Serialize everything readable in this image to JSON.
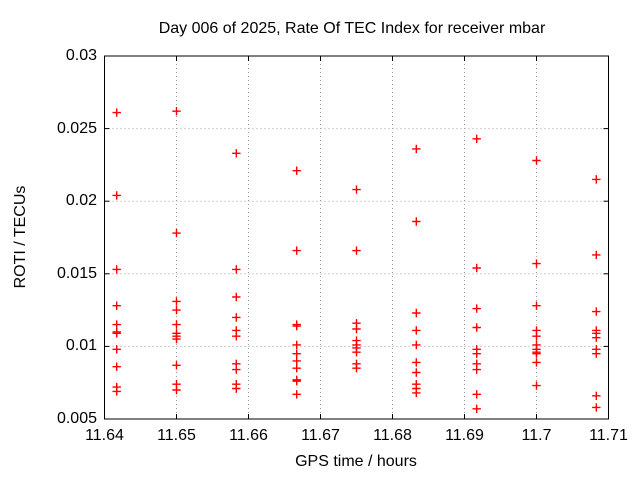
{
  "title": "Day 006 of 2025, Rate Of TEC Index for receiver mbar",
  "chart_data": {
    "type": "scatter",
    "title": "Day 006 of 2025, Rate Of TEC Index for receiver mbar",
    "xlabel": "GPS time / hours",
    "ylabel": "ROTI / TECUs",
    "xlim": [
      11.64,
      11.71
    ],
    "ylim": [
      0.005,
      0.03
    ],
    "x_ticks": [
      11.64,
      11.65,
      11.66,
      11.67,
      11.68,
      11.69,
      11.7,
      11.71
    ],
    "x_tick_labels": [
      "11.64",
      "11.65",
      "11.66",
      "11.67",
      "11.68",
      "11.69",
      "11.7",
      "11.71"
    ],
    "y_ticks": [
      0.005,
      0.01,
      0.015,
      0.02,
      0.025,
      0.03
    ],
    "y_tick_labels": [
      "0.005",
      "0.01",
      "0.015",
      "0.02",
      "0.025",
      "0.03"
    ],
    "grid": true,
    "grid_style": "dotted",
    "grid_color": "#9e9e9e",
    "border_color": "#000000",
    "legend": "none",
    "marker": "plus",
    "marker_color": "#ff0000",
    "series": [
      {
        "name": "ROTI",
        "color": "#ff0000",
        "points": [
          [
            11.6417,
            0.0261
          ],
          [
            11.6417,
            0.0204
          ],
          [
            11.6417,
            0.0153
          ],
          [
            11.6417,
            0.0128
          ],
          [
            11.6417,
            0.0115
          ],
          [
            11.6417,
            0.011
          ],
          [
            11.6417,
            0.0109
          ],
          [
            11.6417,
            0.0098
          ],
          [
            11.6417,
            0.0086
          ],
          [
            11.6417,
            0.0072
          ],
          [
            11.6417,
            0.0069
          ],
          [
            11.65,
            0.0262
          ],
          [
            11.65,
            0.0178
          ],
          [
            11.65,
            0.0131
          ],
          [
            11.65,
            0.0125
          ],
          [
            11.65,
            0.0115
          ],
          [
            11.65,
            0.0109
          ],
          [
            11.65,
            0.0107
          ],
          [
            11.65,
            0.0105
          ],
          [
            11.65,
            0.0087
          ],
          [
            11.65,
            0.0074
          ],
          [
            11.65,
            0.007
          ],
          [
            11.6583,
            0.0233
          ],
          [
            11.6583,
            0.0153
          ],
          [
            11.6583,
            0.0134
          ],
          [
            11.6583,
            0.012
          ],
          [
            11.6583,
            0.0111
          ],
          [
            11.6583,
            0.0107
          ],
          [
            11.6583,
            0.0088
          ],
          [
            11.6583,
            0.0084
          ],
          [
            11.6583,
            0.0074
          ],
          [
            11.6583,
            0.0071
          ],
          [
            11.6667,
            0.0221
          ],
          [
            11.6667,
            0.0166
          ],
          [
            11.6667,
            0.0115
          ],
          [
            11.6667,
            0.0114
          ],
          [
            11.6667,
            0.0101
          ],
          [
            11.6667,
            0.0095
          ],
          [
            11.6667,
            0.009
          ],
          [
            11.6667,
            0.0085
          ],
          [
            11.6667,
            0.0077
          ],
          [
            11.6667,
            0.0076
          ],
          [
            11.6667,
            0.0067
          ],
          [
            11.675,
            0.0208
          ],
          [
            11.675,
            0.0166
          ],
          [
            11.675,
            0.0116
          ],
          [
            11.675,
            0.0112
          ],
          [
            11.675,
            0.0104
          ],
          [
            11.675,
            0.0101
          ],
          [
            11.675,
            0.0099
          ],
          [
            11.675,
            0.0096
          ],
          [
            11.675,
            0.0088
          ],
          [
            11.675,
            0.0085
          ],
          [
            11.6833,
            0.0236
          ],
          [
            11.6833,
            0.0186
          ],
          [
            11.6833,
            0.0123
          ],
          [
            11.6833,
            0.0111
          ],
          [
            11.6833,
            0.0101
          ],
          [
            11.6833,
            0.0089
          ],
          [
            11.6833,
            0.0082
          ],
          [
            11.6833,
            0.0074
          ],
          [
            11.6833,
            0.0071
          ],
          [
            11.6833,
            0.0068
          ],
          [
            11.6917,
            0.0243
          ],
          [
            11.6917,
            0.0154
          ],
          [
            11.6917,
            0.0126
          ],
          [
            11.6917,
            0.0113
          ],
          [
            11.6917,
            0.0098
          ],
          [
            11.6917,
            0.0095
          ],
          [
            11.6917,
            0.0088
          ],
          [
            11.6917,
            0.0084
          ],
          [
            11.6917,
            0.0067
          ],
          [
            11.6917,
            0.0057
          ],
          [
            11.7,
            0.0228
          ],
          [
            11.7,
            0.0157
          ],
          [
            11.7,
            0.0128
          ],
          [
            11.7,
            0.0111
          ],
          [
            11.7,
            0.0107
          ],
          [
            11.7,
            0.0101
          ],
          [
            11.7,
            0.0098
          ],
          [
            11.7,
            0.0096
          ],
          [
            11.7,
            0.0095
          ],
          [
            11.7,
            0.0089
          ],
          [
            11.7,
            0.0073
          ],
          [
            11.7083,
            0.0215
          ],
          [
            11.7083,
            0.0163
          ],
          [
            11.7083,
            0.0124
          ],
          [
            11.7083,
            0.0111
          ],
          [
            11.7083,
            0.0109
          ],
          [
            11.7083,
            0.0106
          ],
          [
            11.7083,
            0.0098
          ],
          [
            11.7083,
            0.0095
          ],
          [
            11.7083,
            0.0066
          ],
          [
            11.7083,
            0.0058
          ]
        ]
      }
    ]
  }
}
